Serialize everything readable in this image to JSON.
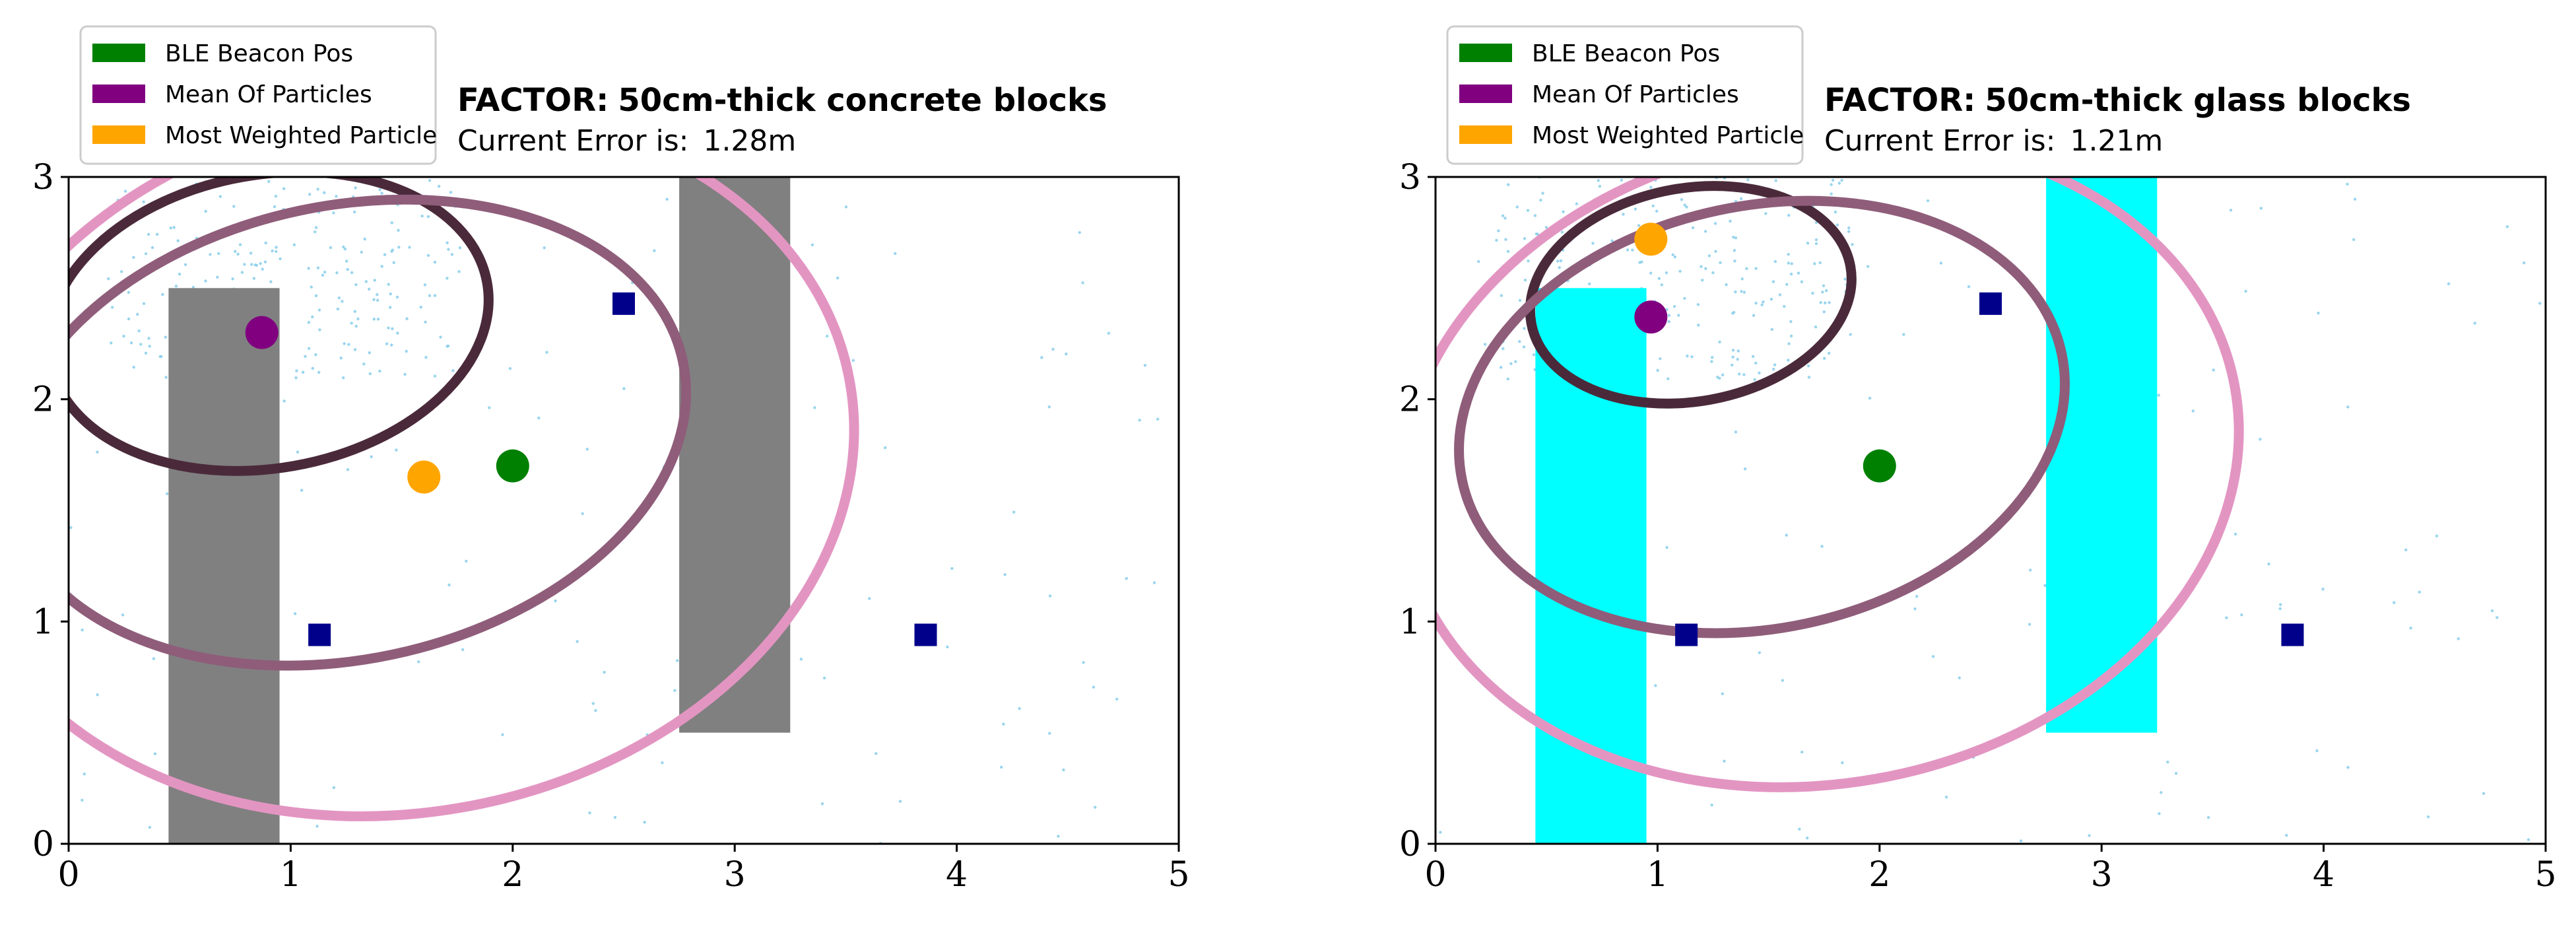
{
  "chart_data": [
    {
      "type": "scatter",
      "title_prefix": "FACTOR:",
      "title_suffix": "50cm-thick concrete blocks",
      "subtitle_prefix": "Current Error is:",
      "subtitle_value": "1.28m",
      "xlim": [
        0,
        5
      ],
      "ylim": [
        0,
        3
      ],
      "xticks": [
        "0",
        "1",
        "2",
        "3",
        "4",
        "5"
      ],
      "yticks": [
        "0",
        "1",
        "2",
        "3"
      ],
      "grid": false,
      "legend_position": "upper-left, above plot",
      "legend": [
        {
          "label": "BLE Beacon Pos",
          "color": "#008000"
        },
        {
          "label": "Mean Of Particles",
          "color": "#800080"
        },
        {
          "label": "Most Weighted Particle",
          "color": "#ffa500"
        }
      ],
      "obstacles": [
        {
          "material": "concrete",
          "x": [
            0.45,
            0.95
          ],
          "y": [
            0,
            2.5
          ],
          "color": "#808080"
        },
        {
          "material": "concrete",
          "x": [
            2.75,
            3.25
          ],
          "y": [
            0.5,
            3.0
          ],
          "color": "#808080"
        }
      ],
      "anchors": {
        "color": "#00008b",
        "points": [
          [
            1.13,
            0.94
          ],
          [
            2.5,
            2.43
          ],
          [
            3.86,
            0.94
          ]
        ]
      },
      "ble_beacon": {
        "x": 2.0,
        "y": 1.7
      },
      "mean_of_particles": {
        "x": 0.87,
        "y": 2.3
      },
      "most_weighted_particle": {
        "x": 1.6,
        "y": 1.65
      },
      "range_ellipses": [
        {
          "color": "#4a2a3a",
          "center": [
            0.9,
            2.35
          ],
          "semi_axes": [
            1.0,
            0.66
          ],
          "angle_deg": -10
        },
        {
          "color": "#8f5d7a",
          "center": [
            1.25,
            1.85
          ],
          "semi_axes": [
            1.55,
            1.02
          ],
          "angle_deg": -12
        },
        {
          "color": "#e395c2",
          "center": [
            1.5,
            1.72
          ],
          "semi_axes": [
            2.05,
            1.58
          ],
          "angle_deg": -10
        }
      ],
      "particle_color": "#87ceeb"
    },
    {
      "type": "scatter",
      "title_prefix": "FACTOR:",
      "title_suffix": "50cm-thick glass blocks",
      "subtitle_prefix": "Current Error is:",
      "subtitle_value": "1.21m",
      "xlim": [
        0,
        5
      ],
      "ylim": [
        0,
        3
      ],
      "xticks": [
        "0",
        "1",
        "2",
        "3",
        "4",
        "5"
      ],
      "yticks": [
        "0",
        "1",
        "2",
        "3"
      ],
      "grid": false,
      "legend_position": "upper-left, above plot",
      "legend": [
        {
          "label": "BLE Beacon Pos",
          "color": "#008000"
        },
        {
          "label": "Mean Of Particles",
          "color": "#800080"
        },
        {
          "label": "Most Weighted Particle",
          "color": "#ffa500"
        }
      ],
      "obstacles": [
        {
          "material": "glass",
          "x": [
            0.45,
            0.95
          ],
          "y": [
            0,
            2.5
          ],
          "color": "#00ffff"
        },
        {
          "material": "glass",
          "x": [
            2.75,
            3.25
          ],
          "y": [
            0.5,
            3.0
          ],
          "color": "#00ffff"
        }
      ],
      "anchors": {
        "color": "#00008b",
        "points": [
          [
            1.13,
            0.94
          ],
          [
            2.5,
            2.43
          ],
          [
            3.86,
            0.94
          ]
        ]
      },
      "ble_beacon": {
        "x": 2.0,
        "y": 1.7
      },
      "mean_of_particles": {
        "x": 0.97,
        "y": 2.37
      },
      "most_weighted_particle": {
        "x": 0.97,
        "y": 2.72
      },
      "range_ellipses": [
        {
          "color": "#4a2a3a",
          "center": [
            1.15,
            2.47
          ],
          "semi_axes": [
            0.73,
            0.48
          ],
          "angle_deg": -10
        },
        {
          "color": "#8f5d7a",
          "center": [
            1.47,
            1.92
          ],
          "semi_axes": [
            1.38,
            0.95
          ],
          "angle_deg": -12
        },
        {
          "color": "#e395c2",
          "center": [
            1.73,
            1.72
          ],
          "semi_axes": [
            1.9,
            1.45
          ],
          "angle_deg": -10
        }
      ],
      "particle_color": "#87ceeb"
    }
  ]
}
